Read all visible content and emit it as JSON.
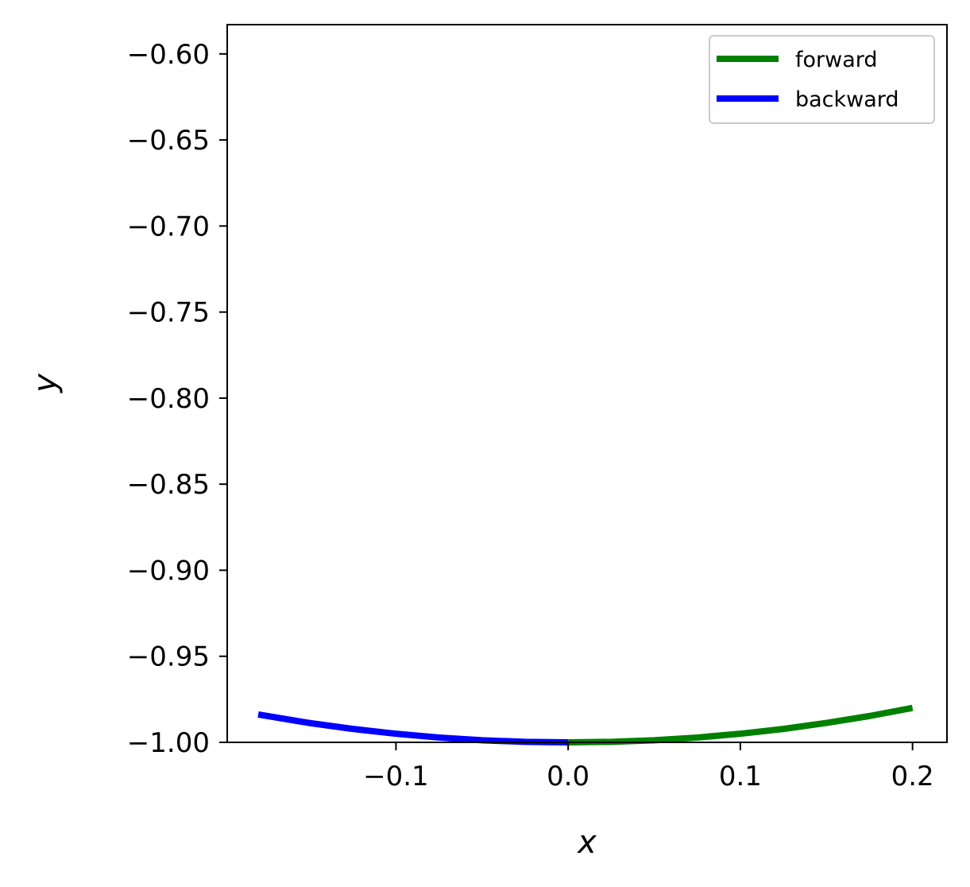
{
  "chart_data": {
    "type": "line",
    "title": "",
    "xlabel": "x",
    "ylabel": "y",
    "xlim": [
      -0.198,
      0.22
    ],
    "ylim": [
      -1.0,
      -0.583
    ],
    "xticks": [
      -0.1,
      0.0,
      0.1,
      0.2
    ],
    "xtick_labels": [
      "−0.1",
      "0.0",
      "0.1",
      "0.2"
    ],
    "yticks": [
      -1.0,
      -0.95,
      -0.9,
      -0.85,
      -0.8,
      -0.75,
      -0.7,
      -0.65,
      -0.6
    ],
    "ytick_labels": [
      "−1.00",
      "−0.95",
      "−0.90",
      "−0.85",
      "−0.80",
      "−0.75",
      "−0.70",
      "−0.65",
      "−0.60"
    ],
    "grid": false,
    "legend_position": "top-right",
    "series": [
      {
        "name": "forward",
        "color": "#008000",
        "x": [
          0.0,
          0.025,
          0.05,
          0.075,
          0.1,
          0.125,
          0.15,
          0.175,
          0.2
        ],
        "y": [
          -1.0,
          -0.9997,
          -0.9988,
          -0.9972,
          -0.995,
          -0.9922,
          -0.9887,
          -0.9847,
          -0.98
        ]
      },
      {
        "name": "backward",
        "color": "#0000ff",
        "x": [
          0.0,
          -0.025,
          -0.05,
          -0.075,
          -0.1,
          -0.125,
          -0.15,
          -0.18
        ],
        "y": [
          -1.0,
          -0.9997,
          -0.9988,
          -0.9972,
          -0.995,
          -0.9922,
          -0.9888,
          -0.9838
        ]
      }
    ]
  }
}
